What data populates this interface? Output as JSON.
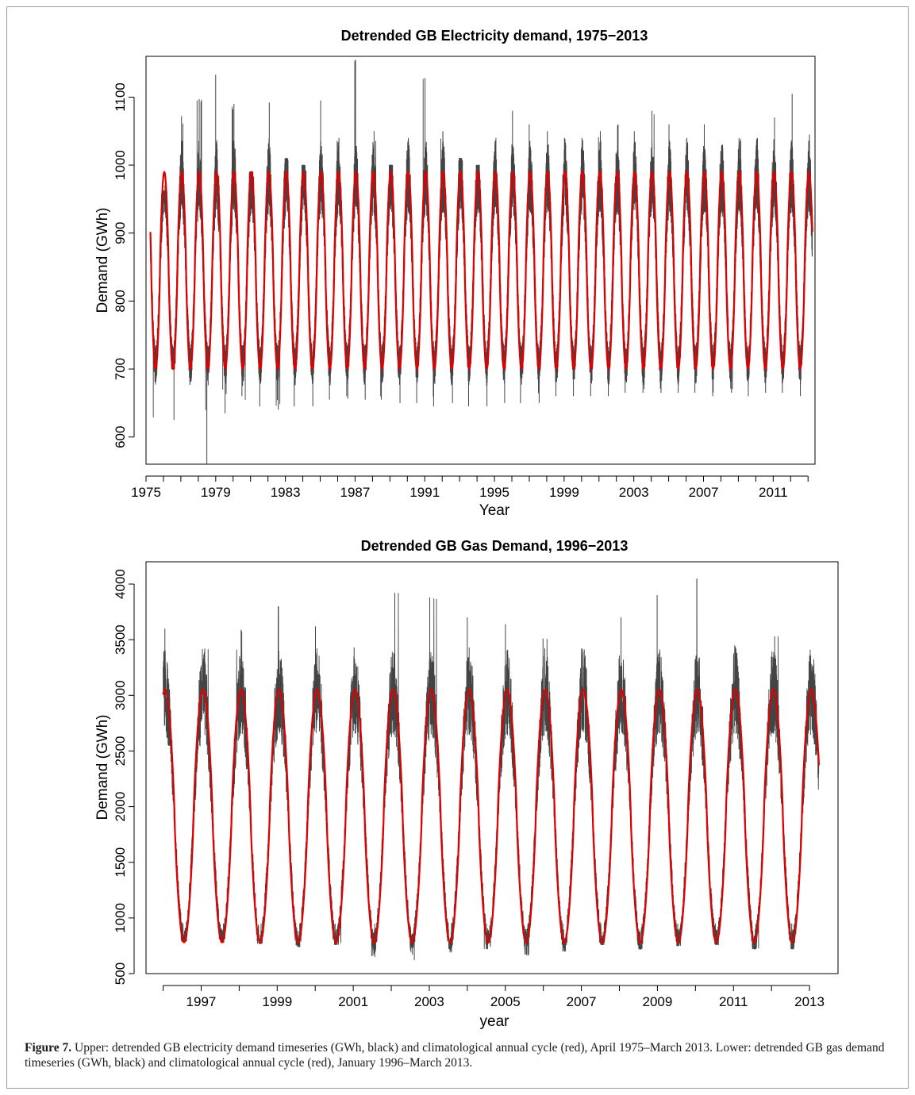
{
  "chart_data": [
    {
      "type": "line",
      "title": "Detrended GB Electricity demand, 1975−2013",
      "xlabel": "Year",
      "ylabel": "Demand (GWh)",
      "xlim": [
        1975.0,
        2013.4
      ],
      "ylim": [
        560,
        1160
      ],
      "x_ticks": [
        1975,
        1979,
        1983,
        1987,
        1991,
        1995,
        1999,
        2003,
        2007,
        2011
      ],
      "x_minor_ticks": [
        1975,
        1976,
        1977,
        1978,
        1979,
        1980,
        1981,
        1982,
        1983,
        1984,
        1985,
        1986,
        1987,
        1988,
        1989,
        1990,
        1991,
        1992,
        1993,
        1994,
        1995,
        1996,
        1997,
        1998,
        1999,
        2000,
        2001,
        2002,
        2003,
        2004,
        2005,
        2006,
        2007,
        2008,
        2009,
        2010,
        2011,
        2012,
        2013
      ],
      "y_ticks": [
        600,
        700,
        800,
        900,
        1000,
        1100
      ],
      "series": [
        {
          "color": "#444444",
          "description_kind": "daily detrended demand",
          "x_start": 1975.25,
          "x_end": 2013.25,
          "cycle_mean": 845,
          "cycle_amplitude": 140,
          "peak_phase": 0.05,
          "annual_max": [
            962,
            1072,
            1097,
            1133,
            1090,
            990,
            1092,
            1010,
            1000,
            1095,
            1040,
            1155,
            1050,
            1000,
            1040,
            1128,
            1050,
            1010,
            1000,
            1040,
            1080,
            1060,
            1050,
            1040,
            1040,
            1050,
            1060,
            1050,
            1080,
            1060,
            1040,
            1060,
            1030,
            1040,
            1040,
            1070,
            1105,
            1045
          ],
          "annual_min": [
            625,
            700,
            560,
            635,
            660,
            645,
            640,
            645,
            645,
            655,
            660,
            655,
            655,
            650,
            650,
            645,
            650,
            645,
            645,
            650,
            650,
            650,
            660,
            660,
            660,
            660,
            665,
            665,
            665,
            665,
            665,
            660,
            665,
            660,
            665,
            665,
            660,
            660
          ]
        },
        {
          "color": "#e00000",
          "description_kind": "climatological annual cycle",
          "x_start": 1975.25,
          "x_end": 2013.25,
          "mean": 845,
          "amplitude": 145,
          "peak_phase": 0.05
        }
      ]
    },
    {
      "type": "line",
      "title": "Detrended GB Gas Demand, 1996−2013",
      "xlabel": "year",
      "ylabel": "Demand (GWh)",
      "xlim": [
        1995.55,
        2013.75
      ],
      "ylim": [
        500,
        4200
      ],
      "x_ticks": [
        1997,
        1999,
        2001,
        2003,
        2005,
        2007,
        2009,
        2011,
        2013
      ],
      "x_minor_ticks": [
        1996,
        1997,
        1998,
        1999,
        2000,
        2001,
        2002,
        2003,
        2004,
        2005,
        2006,
        2007,
        2008,
        2009,
        2010,
        2011,
        2012,
        2013
      ],
      "y_ticks": [
        500,
        1000,
        1500,
        2000,
        2500,
        3000,
        3500,
        4000
      ],
      "series": [
        {
          "color": "#444444",
          "description_kind": "daily detrended demand",
          "x_start": 1996.0,
          "x_end": 2013.25,
          "cycle_mean": 1910,
          "cycle_amplitude": 1130,
          "peak_phase": 0.05,
          "annual_max": [
            3600,
            3420,
            3590,
            3800,
            3620,
            3430,
            3920,
            3880,
            3700,
            3640,
            3510,
            3420,
            3700,
            3900,
            4050,
            3450,
            3530
          ],
          "annual_min": [
            790,
            780,
            770,
            740,
            760,
            650,
            620,
            690,
            720,
            660,
            700,
            760,
            720,
            750,
            760,
            720,
            720
          ]
        },
        {
          "color": "#e00000",
          "description_kind": "climatological annual cycle",
          "x_start": 1996.0,
          "x_end": 2013.25,
          "mean": 1915,
          "amplitude": 1135,
          "peak_phase": 0.05
        }
      ]
    }
  ],
  "caption": {
    "label": "Figure 7.",
    "text": " Upper: detrended GB electricity demand timeseries (GWh, black) and climatological annual cycle (red), April 1975–March 2013. Lower: detrended GB gas demand timeseries (GWh, black) and climatological annual cycle (red), January 1996–March 2013."
  }
}
